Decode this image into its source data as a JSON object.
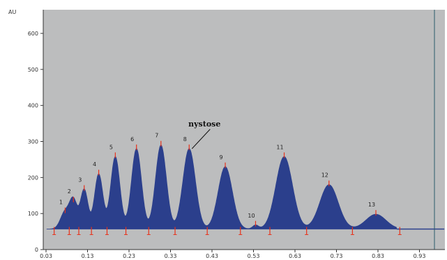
{
  "chart_data": {
    "type": "area",
    "ylabel": "AU",
    "ylim": [
      0,
      600
    ],
    "xlim": [
      0.03,
      1.0
    ],
    "y_ticks": [
      "0",
      "100",
      "200",
      "300",
      "400",
      "500",
      "600"
    ],
    "y_tick_values": [
      0,
      100,
      200,
      300,
      400,
      500,
      600
    ],
    "x_ticks": [
      "0.03",
      "0.13",
      "0.23",
      "0.33",
      "0.43",
      "0.53",
      "0.63",
      "0.73",
      "0.83",
      "0.93"
    ],
    "x_tick_values": [
      0.03,
      0.13,
      0.23,
      0.33,
      0.43,
      0.53,
      0.63,
      0.73,
      0.83,
      0.93
    ],
    "grid": false,
    "baseline": 57,
    "peaks": [
      {
        "label": "1",
        "x": 0.076,
        "height": 105,
        "width": 0.011
      },
      {
        "label": "2",
        "x": 0.096,
        "height": 135,
        "width": 0.009
      },
      {
        "label": "3",
        "x": 0.122,
        "height": 167,
        "width": 0.009
      },
      {
        "label": "4",
        "x": 0.157,
        "height": 210,
        "width": 0.01
      },
      {
        "label": "5",
        "x": 0.197,
        "height": 258,
        "width": 0.011
      },
      {
        "label": "6",
        "x": 0.248,
        "height": 280,
        "width": 0.012
      },
      {
        "label": "7",
        "x": 0.307,
        "height": 290,
        "width": 0.013
      },
      {
        "label": "8",
        "x": 0.375,
        "height": 280,
        "width": 0.015
      },
      {
        "label": "9",
        "x": 0.462,
        "height": 230,
        "width": 0.017
      },
      {
        "label": "10",
        "x": 0.535,
        "height": 68,
        "width": 0.007
      },
      {
        "label": "11",
        "x": 0.604,
        "height": 258,
        "width": 0.02
      },
      {
        "label": "12",
        "x": 0.712,
        "height": 180,
        "width": 0.022
      },
      {
        "label": "13",
        "x": 0.825,
        "height": 98,
        "width": 0.024
      }
    ],
    "annotations": [
      {
        "text": "nystose",
        "target_peak": "8"
      }
    ],
    "colors": {
      "fill": "#2b3f8c",
      "plot_bg": "#bcbdbe",
      "marker": "#e8321a",
      "axis": "#333333",
      "cursor": "#2a5a6a"
    }
  }
}
